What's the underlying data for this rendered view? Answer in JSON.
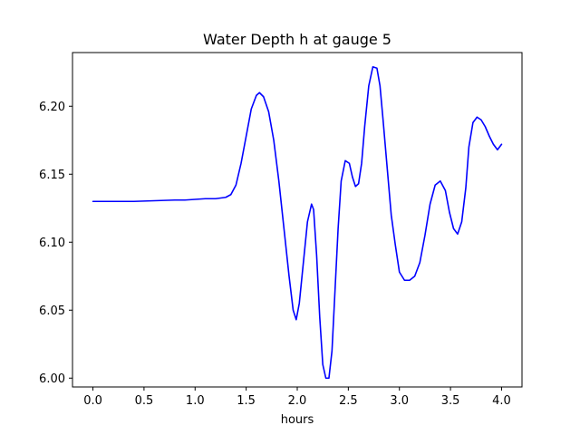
{
  "chart_data": {
    "type": "line",
    "title": "Water Depth h at gauge 5",
    "xlabel": "hours",
    "ylabel": "",
    "xlim": [
      -0.2,
      4.2
    ],
    "ylim": [
      5.9935,
      6.2395
    ],
    "xticks": [
      0.0,
      0.5,
      1.0,
      1.5,
      2.0,
      2.5,
      3.0,
      3.5,
      4.0
    ],
    "xtick_labels": [
      "0.0",
      "0.5",
      "1.0",
      "1.5",
      "2.0",
      "2.5",
      "3.0",
      "3.5",
      "4.0"
    ],
    "yticks": [
      6.0,
      6.05,
      6.1,
      6.15,
      6.2
    ],
    "ytick_labels": [
      "6.00",
      "6.05",
      "6.10",
      "6.15",
      "6.20"
    ],
    "grid": false,
    "series": [
      {
        "color": "#0000ff",
        "x": [
          0.0,
          0.2,
          0.4,
          0.6,
          0.8,
          0.9,
          1.0,
          1.1,
          1.2,
          1.3,
          1.35,
          1.4,
          1.45,
          1.5,
          1.55,
          1.6,
          1.63,
          1.67,
          1.72,
          1.77,
          1.82,
          1.87,
          1.92,
          1.96,
          1.99,
          2.02,
          2.06,
          2.1,
          2.14,
          2.16,
          2.19,
          2.22,
          2.25,
          2.28,
          2.31,
          2.34,
          2.37,
          2.4,
          2.43,
          2.47,
          2.51,
          2.54,
          2.57,
          2.6,
          2.63,
          2.66,
          2.7,
          2.74,
          2.78,
          2.81,
          2.84,
          2.88,
          2.92,
          2.96,
          3.0,
          3.05,
          3.1,
          3.15,
          3.2,
          3.25,
          3.3,
          3.35,
          3.4,
          3.45,
          3.49,
          3.53,
          3.57,
          3.61,
          3.65,
          3.68,
          3.72,
          3.76,
          3.8,
          3.84,
          3.88,
          3.92,
          3.96,
          4.0
        ],
        "y": [
          6.13,
          6.13,
          6.13,
          6.1305,
          6.131,
          6.131,
          6.1315,
          6.132,
          6.132,
          6.133,
          6.135,
          6.142,
          6.158,
          6.178,
          6.198,
          6.208,
          6.21,
          6.207,
          6.196,
          6.175,
          6.145,
          6.11,
          6.075,
          6.05,
          6.043,
          6.055,
          6.085,
          6.115,
          6.128,
          6.124,
          6.09,
          6.045,
          6.01,
          6.0,
          6.0,
          6.02,
          6.065,
          6.11,
          6.145,
          6.16,
          6.158,
          6.148,
          6.141,
          6.143,
          6.158,
          6.185,
          6.215,
          6.229,
          6.228,
          6.215,
          6.19,
          6.155,
          6.12,
          6.098,
          6.078,
          6.072,
          6.072,
          6.075,
          6.085,
          6.105,
          6.128,
          6.142,
          6.145,
          6.138,
          6.122,
          6.11,
          6.106,
          6.115,
          6.14,
          6.17,
          6.188,
          6.192,
          6.19,
          6.185,
          6.178,
          6.172,
          6.168,
          6.172
        ]
      }
    ]
  }
}
